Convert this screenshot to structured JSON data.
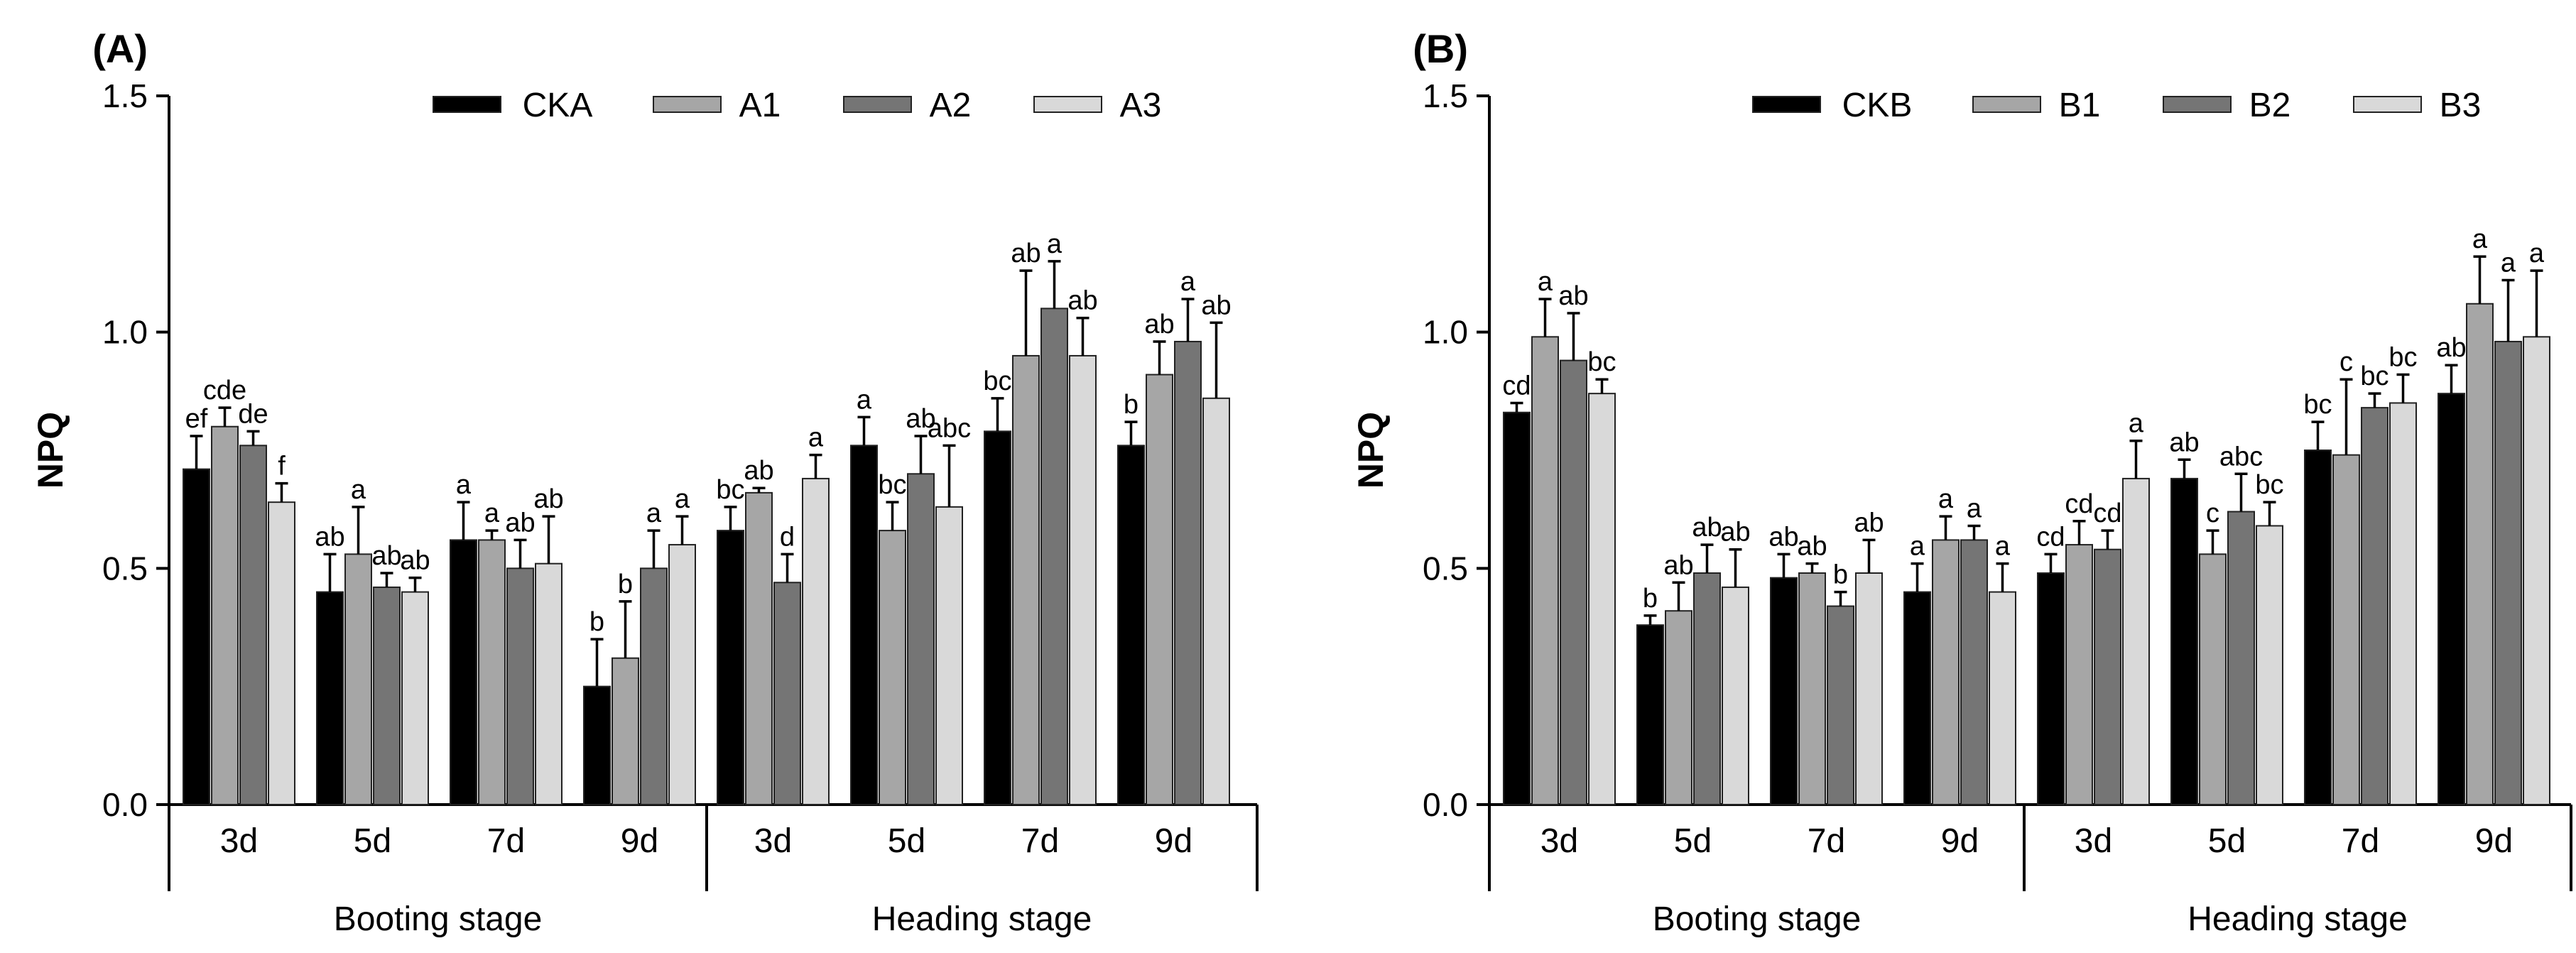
{
  "chart_data": [
    {
      "type": "bar",
      "panel_label": "(A)",
      "ylabel": "NPQ",
      "ylim": [
        0,
        1.5
      ],
      "yticks": [
        "0.0",
        "0.5",
        "1.0",
        "1.5"
      ],
      "groups": [
        "Booting stage",
        "Heading stage"
      ],
      "categories": [
        "3d",
        "5d",
        "7d",
        "9d",
        "3d",
        "5d",
        "7d",
        "9d"
      ],
      "legend_position": "top",
      "series": [
        {
          "name": "CKA",
          "color": "#000000",
          "values": [
            0.71,
            0.45,
            0.56,
            0.25,
            0.58,
            0.76,
            0.79,
            0.76
          ],
          "errors": [
            0.07,
            0.08,
            0.08,
            0.1,
            0.05,
            0.06,
            0.07,
            0.05
          ],
          "letters": [
            "ef",
            "ab",
            "a",
            "b",
            "bc",
            "a",
            "bc",
            "b"
          ]
        },
        {
          "name": "A1",
          "color": "#a6a6a6",
          "values": [
            0.8,
            0.53,
            0.56,
            0.31,
            0.66,
            0.58,
            0.95,
            0.91
          ],
          "errors": [
            0.04,
            0.1,
            0.02,
            0.12,
            0.01,
            0.06,
            0.18,
            0.07
          ],
          "letters": [
            "cde",
            "a",
            "a",
            "b",
            "ab",
            "bc",
            "ab",
            "ab"
          ]
        },
        {
          "name": "A2",
          "color": "#757575",
          "values": [
            0.76,
            0.46,
            0.5,
            0.5,
            0.47,
            0.7,
            1.05,
            0.98
          ],
          "errors": [
            0.03,
            0.03,
            0.06,
            0.08,
            0.06,
            0.08,
            0.1,
            0.09
          ],
          "letters": [
            "de",
            "ab",
            "ab",
            "a",
            "d",
            "ab",
            "a",
            "a"
          ]
        },
        {
          "name": "A3",
          "color": "#d9d9d9",
          "values": [
            0.64,
            0.45,
            0.51,
            0.55,
            0.69,
            0.63,
            0.95,
            0.86
          ],
          "errors": [
            0.04,
            0.03,
            0.1,
            0.06,
            0.05,
            0.13,
            0.08,
            0.16
          ],
          "letters": [
            "f",
            "ab",
            "ab",
            "a",
            "a",
            "abc",
            "ab",
            "ab"
          ]
        }
      ]
    },
    {
      "type": "bar",
      "panel_label": "(B)",
      "ylabel": "NPQ",
      "ylim": [
        0,
        1.5
      ],
      "yticks": [
        "0.0",
        "0.5",
        "1.0",
        "1.5"
      ],
      "groups": [
        "Booting stage",
        "Heading stage"
      ],
      "categories": [
        "3d",
        "5d",
        "7d",
        "9d",
        "3d",
        "5d",
        "7d",
        "9d"
      ],
      "legend_position": "top",
      "series": [
        {
          "name": "CKB",
          "color": "#000000",
          "values": [
            0.83,
            0.38,
            0.48,
            0.45,
            0.49,
            0.69,
            0.75,
            0.87
          ],
          "errors": [
            0.02,
            0.02,
            0.05,
            0.06,
            0.04,
            0.04,
            0.06,
            0.06
          ],
          "letters": [
            "cd",
            "b",
            "ab",
            "a",
            "cd",
            "ab",
            "bc",
            "ab"
          ]
        },
        {
          "name": "B1",
          "color": "#a6a6a6",
          "values": [
            0.99,
            0.41,
            0.49,
            0.56,
            0.55,
            0.53,
            0.74,
            1.06
          ],
          "errors": [
            0.08,
            0.06,
            0.02,
            0.05,
            0.05,
            0.05,
            0.16,
            0.1
          ],
          "letters": [
            "a",
            "ab",
            "ab",
            "a",
            "cd",
            "c",
            "c",
            "a"
          ]
        },
        {
          "name": "B2",
          "color": "#757575",
          "values": [
            0.94,
            0.49,
            0.42,
            0.56,
            0.54,
            0.62,
            0.84,
            0.98
          ],
          "errors": [
            0.1,
            0.06,
            0.03,
            0.03,
            0.04,
            0.08,
            0.03,
            0.13
          ],
          "letters": [
            "ab",
            "ab",
            "b",
            "a",
            "cd",
            "abc",
            "bc",
            "a"
          ]
        },
        {
          "name": "B3",
          "color": "#d9d9d9",
          "values": [
            0.87,
            0.46,
            0.49,
            0.45,
            0.69,
            0.59,
            0.85,
            0.99
          ],
          "errors": [
            0.03,
            0.08,
            0.07,
            0.06,
            0.08,
            0.05,
            0.06,
            0.14
          ],
          "letters": [
            "bc",
            "ab",
            "ab",
            "a",
            "a",
            "bc",
            "bc",
            "a"
          ]
        }
      ]
    }
  ]
}
